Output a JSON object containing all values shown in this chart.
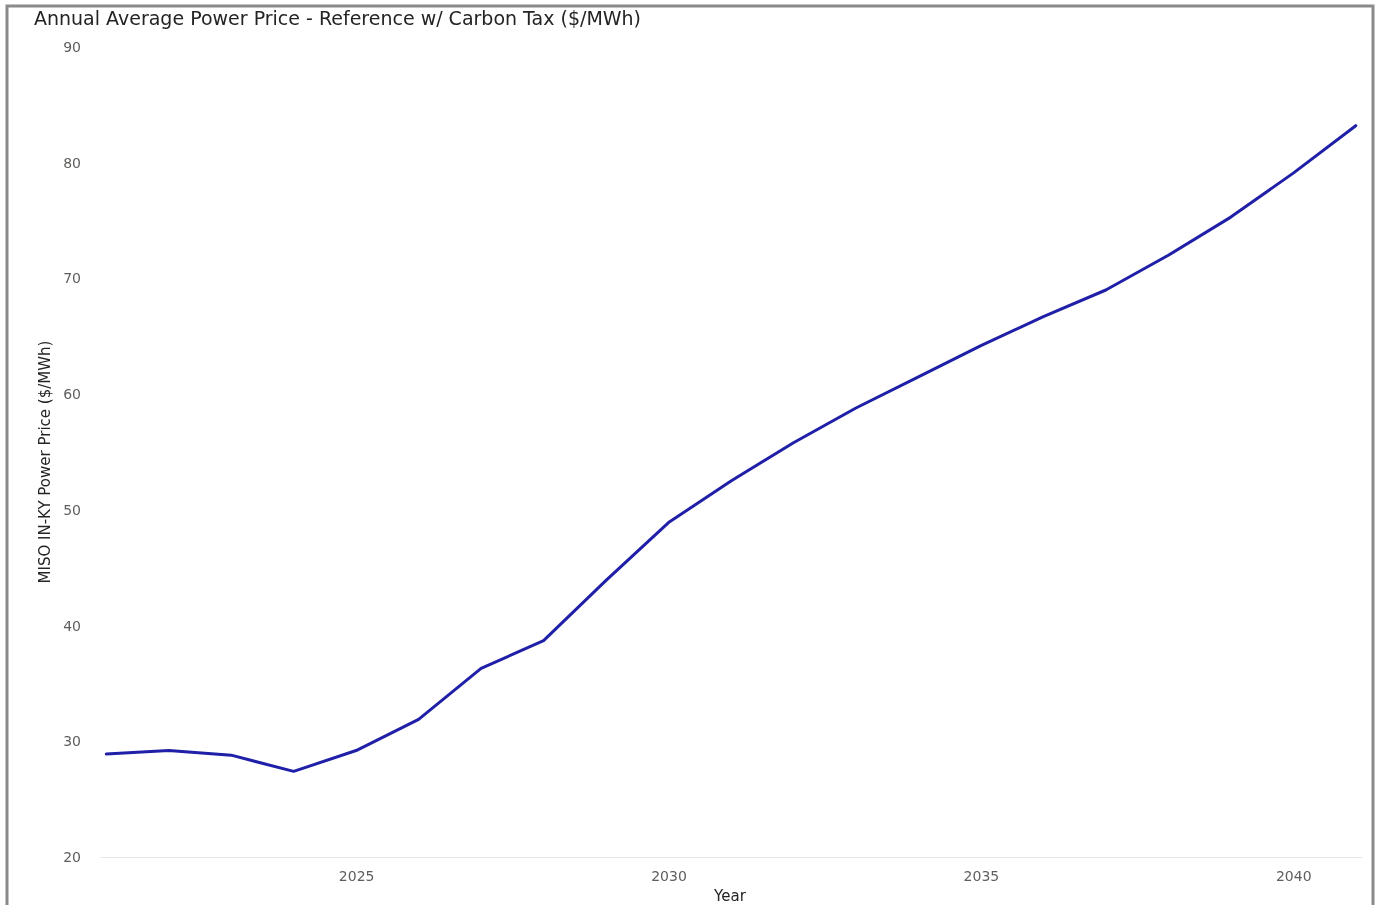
{
  "chart_data": {
    "type": "line",
    "title": "Annual Average Power Price - Reference w/ Carbon Tax ($/MWh)",
    "xlabel": "Year",
    "ylabel": "MISO IN-KY Power Price ($/MWh)",
    "x": [
      2021,
      2022,
      2023,
      2024,
      2025,
      2026,
      2027,
      2028,
      2029,
      2030,
      2031,
      2032,
      2033,
      2034,
      2035,
      2036,
      2037,
      2038,
      2039,
      2040,
      2041
    ],
    "series": [
      {
        "color": "#1f1fa8",
        "values": [
          28.9,
          29.2,
          28.8,
          27.4,
          29.2,
          31.9,
          36.3,
          38.7,
          43.9,
          48.9,
          52.5,
          55.8,
          58.8,
          61.5,
          64.2,
          66.7,
          69.0,
          72.0,
          75.3,
          79.1,
          83.2
        ]
      }
    ],
    "xlim": [
      2020.9,
      2041.1
    ],
    "xticks": [
      2025,
      2030,
      2035,
      2040
    ],
    "ylim": [
      20,
      90
    ],
    "yticks": [
      20,
      30,
      40,
      50,
      60,
      70,
      80,
      90
    ],
    "grid": false,
    "marker": "none",
    "line_style": "solid"
  }
}
